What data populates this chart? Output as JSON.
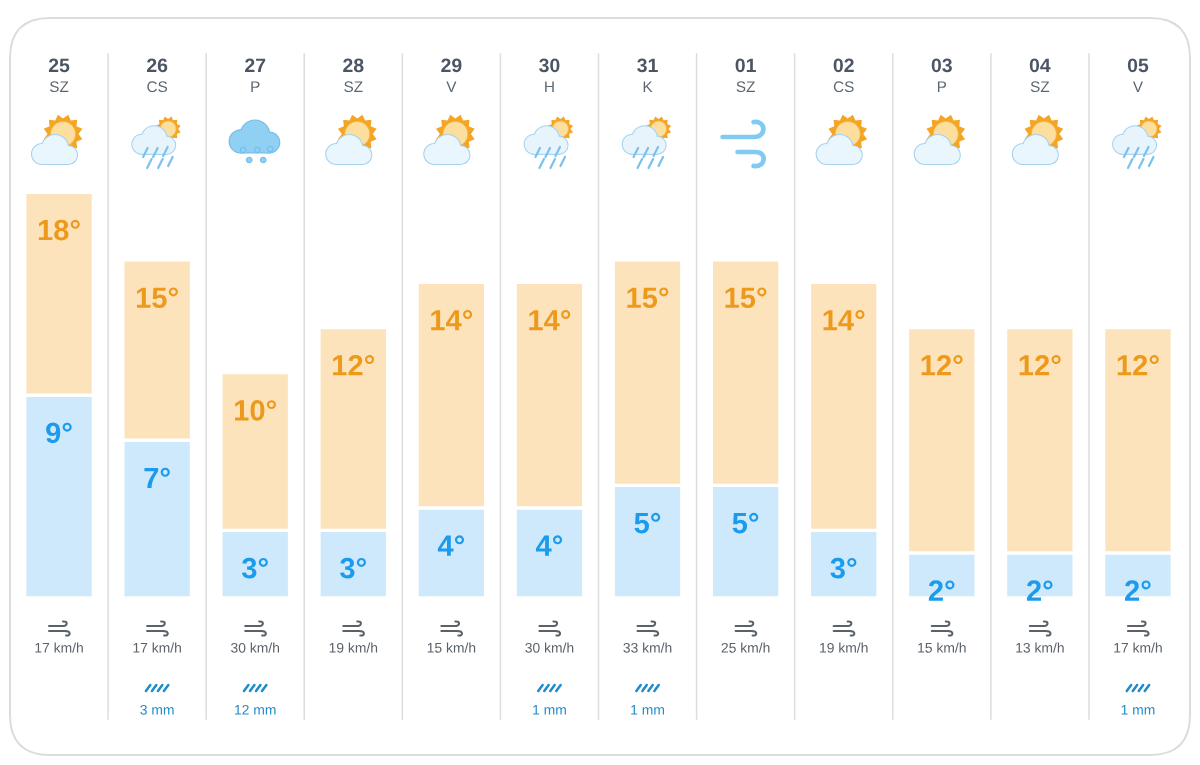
{
  "chart_data": [
    {
      "type": "bar",
      "stacked": true,
      "categories": [
        "25\nSZ",
        "26\nCS",
        "27\nP",
        "28\nSZ",
        "29\nV",
        "30\nH",
        "31\nK",
        "01\nSZ",
        "02\nCS",
        "03\nP",
        "04\nSZ",
        "05\nV"
      ],
      "series": [
        {
          "color": "#cde9fb",
          "values": [
            9,
            7,
            3,
            3,
            4,
            4,
            5,
            5,
            3,
            2,
            2,
            2
          ],
          "value_labels": [
            "9°",
            "7°",
            "3°",
            "3°",
            "4°",
            "4°",
            "5°",
            "5°",
            "3°",
            "2°",
            "2°",
            "2°"
          ]
        },
        {
          "color": "#fde3bc",
          "values": [
            9,
            8,
            7,
            9,
            10,
            10,
            10,
            10,
            11,
            10,
            10,
            10
          ]
        }
      ],
      "totals": [
        "18°",
        "15°",
        "10°",
        "12°",
        "14°",
        "14°",
        "15°",
        "15°",
        "14°",
        "12°",
        "12°",
        "12°"
      ],
      "tick_labels": "x"
    },
    {
      "type": "other",
      "categories": [
        null,
        null,
        null,
        null,
        null,
        null,
        null,
        null,
        null,
        null,
        null,
        null
      ],
      "color": "#5a6169",
      "values": [
        17,
        17,
        30,
        19,
        15,
        30,
        33,
        25,
        19,
        15,
        13,
        17
      ],
      "value_labels": [
        "17 km/h",
        "17 km/h",
        "30 km/h",
        "19 km/h",
        "15 km/h",
        "30 km/h",
        "33 km/h",
        "25 km/h",
        "19 km/h",
        "15 km/h",
        "13 km/h",
        "17 km/h"
      ]
    },
    {
      "type": "other",
      "categories": [
        null,
        null,
        null,
        null,
        null,
        null,
        null,
        null,
        null,
        null,
        null,
        null
      ],
      "color": "#1e8bcb",
      "values": [
        null,
        3,
        12,
        null,
        null,
        1,
        1,
        null,
        null,
        null,
        null,
        1
      ],
      "value_labels": [
        null,
        "3 mm",
        "12 mm",
        null,
        null,
        "1 mm",
        "1 mm",
        null,
        null,
        null,
        null,
        "1 mm"
      ]
    }
  ]
}
